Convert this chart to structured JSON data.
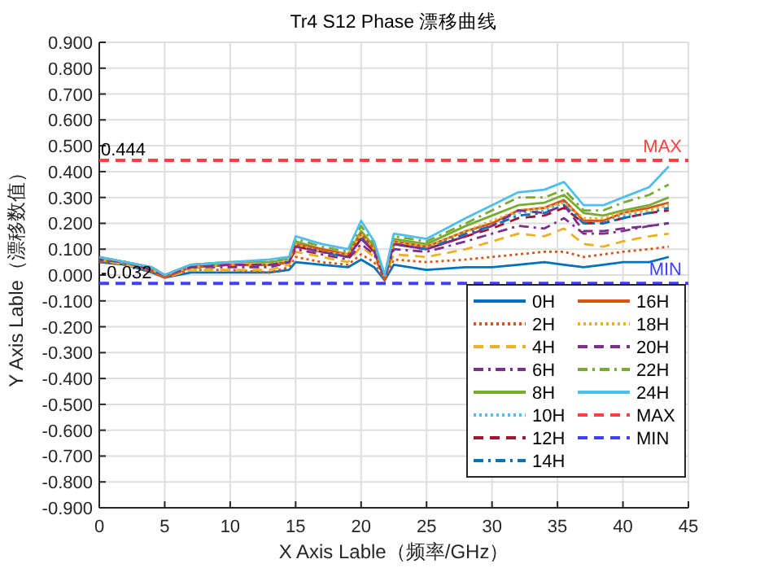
{
  "chart_data": {
    "type": "line",
    "title": "Tr4 S12 Phase  漂移曲线",
    "xlabel": "X Axis Lable（频率/GHz）",
    "ylabel": "Y Axis Lable（漂移数值）",
    "x": [
      0,
      2,
      4,
      5,
      7,
      10,
      13,
      14.5,
      15,
      17,
      19,
      20,
      21,
      21.8,
      22.5,
      25,
      28,
      30,
      32,
      34,
      35.5,
      37,
      38.5,
      40,
      42,
      43.5
    ],
    "xlim": [
      0,
      45
    ],
    "xticks": [
      0,
      5,
      10,
      15,
      20,
      25,
      30,
      35,
      40,
      45
    ],
    "ylim": [
      -0.9,
      0.9
    ],
    "yticks": [
      {
        "value": 0.9,
        "label": "0.900"
      },
      {
        "value": 0.8,
        "label": "0.800"
      },
      {
        "value": 0.7,
        "label": "0.700"
      },
      {
        "value": 0.6,
        "label": "0.600"
      },
      {
        "value": 0.5,
        "label": "0.500"
      },
      {
        "value": 0.4,
        "label": "0.400"
      },
      {
        "value": 0.3,
        "label": "0.300"
      },
      {
        "value": 0.2,
        "label": "0.200"
      },
      {
        "value": 0.1,
        "label": "0.100"
      },
      {
        "value": 0,
        "label": "0.000"
      },
      {
        "value": -0.1,
        "label": "-0.100"
      },
      {
        "value": -0.2,
        "label": "-0.200"
      },
      {
        "value": -0.3,
        "label": "-0.300"
      },
      {
        "value": -0.4,
        "label": "-0.400"
      },
      {
        "value": -0.5,
        "label": "-0.500"
      },
      {
        "value": -0.6,
        "label": "-0.600"
      },
      {
        "value": -0.7,
        "label": "-0.700"
      },
      {
        "value": -0.8,
        "label": "-0.800"
      },
      {
        "value": -0.9,
        "label": "-0.900"
      }
    ],
    "grid": true,
    "legend": "bottom right",
    "series": [
      {
        "name": "0H",
        "color": "#0072bd",
        "line_style": "solid",
        "values": [
          0.05,
          0.04,
          0.01,
          -0.01,
          0.01,
          0.01,
          0.01,
          0.02,
          0.05,
          0.04,
          0.03,
          0.06,
          0.03,
          -0.02,
          0.04,
          0.02,
          0.03,
          0.03,
          0.04,
          0.05,
          0.04,
          0.03,
          0.04,
          0.05,
          0.05,
          0.07
        ]
      },
      {
        "name": "2H",
        "color": "#d95319",
        "line_style": "dotted",
        "values": [
          0.05,
          0.04,
          0.01,
          -0.01,
          0.02,
          0.02,
          0.01,
          0.03,
          0.07,
          0.05,
          0.04,
          0.08,
          0.05,
          -0.02,
          0.06,
          0.05,
          0.06,
          0.07,
          0.08,
          0.09,
          0.09,
          0.07,
          0.08,
          0.09,
          0.1,
          0.11
        ]
      },
      {
        "name": "4H",
        "color": "#edb120",
        "line_style": "dashed",
        "values": [
          0.06,
          0.04,
          0.02,
          -0.01,
          0.02,
          0.02,
          0.02,
          0.04,
          0.09,
          0.07,
          0.05,
          0.11,
          0.07,
          -0.01,
          0.08,
          0.07,
          0.1,
          0.13,
          0.16,
          0.15,
          0.18,
          0.12,
          0.11,
          0.13,
          0.15,
          0.16
        ]
      },
      {
        "name": "6H",
        "color": "#7e2f8e",
        "line_style": "dashdot",
        "values": [
          0.06,
          0.05,
          0.02,
          0.0,
          0.03,
          0.03,
          0.03,
          0.05,
          0.1,
          0.08,
          0.06,
          0.12,
          0.08,
          -0.01,
          0.1,
          0.09,
          0.13,
          0.16,
          0.19,
          0.18,
          0.22,
          0.16,
          0.16,
          0.17,
          0.19,
          0.2
        ]
      },
      {
        "name": "8H",
        "color": "#77ac30",
        "line_style": "solid",
        "values": [
          0.07,
          0.05,
          0.03,
          0.0,
          0.04,
          0.05,
          0.05,
          0.06,
          0.13,
          0.1,
          0.08,
          0.17,
          0.11,
          0.0,
          0.14,
          0.12,
          0.19,
          0.23,
          0.27,
          0.28,
          0.31,
          0.24,
          0.23,
          0.25,
          0.27,
          0.3
        ]
      },
      {
        "name": "10H",
        "color": "#4dbeee",
        "line_style": "dotted",
        "values": [
          0.06,
          0.05,
          0.02,
          0.0,
          0.03,
          0.04,
          0.04,
          0.05,
          0.12,
          0.09,
          0.07,
          0.15,
          0.1,
          -0.01,
          0.13,
          0.11,
          0.17,
          0.2,
          0.24,
          0.25,
          0.28,
          0.21,
          0.21,
          0.23,
          0.25,
          0.27
        ]
      },
      {
        "name": "12H",
        "color": "#a2142f",
        "line_style": "dashed",
        "values": [
          0.06,
          0.05,
          0.02,
          0.0,
          0.03,
          0.04,
          0.04,
          0.05,
          0.11,
          0.09,
          0.07,
          0.14,
          0.09,
          -0.01,
          0.12,
          0.1,
          0.15,
          0.18,
          0.22,
          0.23,
          0.26,
          0.2,
          0.2,
          0.22,
          0.24,
          0.25
        ]
      },
      {
        "name": "14H",
        "color": "#0072bd",
        "line_style": "dashdot",
        "values": [
          0.06,
          0.05,
          0.02,
          0.0,
          0.03,
          0.04,
          0.04,
          0.05,
          0.12,
          0.09,
          0.07,
          0.15,
          0.1,
          -0.02,
          0.12,
          0.1,
          0.16,
          0.19,
          0.23,
          0.24,
          0.27,
          0.2,
          0.2,
          0.22,
          0.24,
          0.26
        ]
      },
      {
        "name": "16H",
        "color": "#d95319",
        "line_style": "solid",
        "values": [
          0.06,
          0.05,
          0.02,
          -0.01,
          0.03,
          0.04,
          0.04,
          0.05,
          0.12,
          0.1,
          0.08,
          0.16,
          0.1,
          -0.02,
          0.13,
          0.11,
          0.17,
          0.2,
          0.25,
          0.26,
          0.29,
          0.21,
          0.21,
          0.24,
          0.26,
          0.28
        ]
      },
      {
        "name": "18H",
        "color": "#edb120",
        "line_style": "dotted",
        "values": [
          0.06,
          0.05,
          0.02,
          0.0,
          0.03,
          0.04,
          0.04,
          0.06,
          0.12,
          0.09,
          0.08,
          0.16,
          0.1,
          -0.01,
          0.13,
          0.11,
          0.17,
          0.21,
          0.25,
          0.26,
          0.28,
          0.22,
          0.22,
          0.24,
          0.25,
          0.27
        ]
      },
      {
        "name": "20H",
        "color": "#7e2f8e",
        "line_style": "dashed",
        "values": [
          0.06,
          0.05,
          0.02,
          0.0,
          0.03,
          0.04,
          0.04,
          0.05,
          0.11,
          0.09,
          0.07,
          0.14,
          0.09,
          -0.01,
          0.12,
          0.1,
          0.15,
          0.19,
          0.25,
          0.24,
          0.27,
          0.17,
          0.17,
          0.18,
          0.19,
          0.2
        ]
      },
      {
        "name": "22H",
        "color": "#77ac30",
        "line_style": "dashdot",
        "values": [
          0.07,
          0.05,
          0.03,
          0.0,
          0.04,
          0.05,
          0.05,
          0.07,
          0.14,
          0.11,
          0.09,
          0.19,
          0.12,
          0.0,
          0.15,
          0.13,
          0.2,
          0.25,
          0.3,
          0.3,
          0.33,
          0.25,
          0.25,
          0.28,
          0.31,
          0.35
        ]
      },
      {
        "name": "24H",
        "color": "#4dbeee",
        "line_style": "solid",
        "values": [
          0.07,
          0.05,
          0.03,
          0.0,
          0.04,
          0.05,
          0.06,
          0.07,
          0.15,
          0.12,
          0.1,
          0.21,
          0.13,
          0.0,
          0.16,
          0.14,
          0.22,
          0.27,
          0.32,
          0.33,
          0.36,
          0.27,
          0.27,
          0.3,
          0.34,
          0.42
        ]
      }
    ],
    "ref_lines": [
      {
        "axis": "y",
        "value": 0.444,
        "label": "MAX",
        "color": "#ff4040",
        "line_style": "dashed"
      },
      {
        "axis": "y",
        "value": -0.032,
        "label": "MIN",
        "color": "#4040ff",
        "line_style": "dashed"
      }
    ],
    "annotations": [
      {
        "text": "0.444",
        "x": 0,
        "y": 0.444
      },
      {
        "text": "-0.032",
        "x": 0,
        "y": -0.032
      }
    ]
  }
}
